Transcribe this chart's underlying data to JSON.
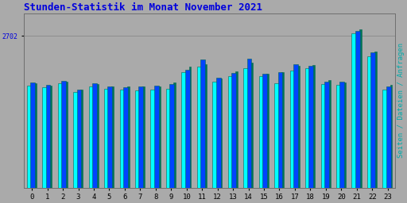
{
  "title": "Stunden-Statistik im Monat November 2021",
  "title_color": "#0000dd",
  "title_fontsize": 9,
  "ylabel_right": "Seiten / Dateien / Anfragen",
  "ylabel_right_color": "#00aaaa",
  "ylabel_right_fontsize": 6.5,
  "xlabel_labels": [
    "0",
    "1",
    "2",
    "3",
    "4",
    "5",
    "6",
    "7",
    "8",
    "9",
    "10",
    "11",
    "12",
    "13",
    "14",
    "15",
    "16",
    "17",
    "18",
    "19",
    "20",
    "21",
    "22",
    "23"
  ],
  "ytick_label": "2702",
  "ytick_label_color": "#0000dd",
  "background_color": "#aaaaaa",
  "plot_bg_color": "#aaaaaa",
  "bar_color_cyan": "#00ffff",
  "bar_color_blue": "#0044ff",
  "bar_color_green": "#007755",
  "bar_edge_color": "#006655",
  "ylim_max": 3100,
  "ytick_val": 2702,
  "seiten": [
    1820,
    1780,
    1860,
    1700,
    1800,
    1760,
    1740,
    1730,
    1740,
    1760,
    2060,
    2160,
    1880,
    1980,
    2120,
    1980,
    1860,
    2080,
    2130,
    1840,
    1830,
    2740,
    2340,
    1750
  ],
  "dateien": [
    1870,
    1830,
    1900,
    1750,
    1860,
    1800,
    1790,
    1800,
    1820,
    1840,
    2100,
    2280,
    1960,
    2040,
    2290,
    2020,
    2050,
    2200,
    2170,
    1890,
    1880,
    2790,
    2410,
    1800
  ],
  "anfragen": [
    1855,
    1820,
    1880,
    1740,
    1845,
    1795,
    1795,
    1805,
    1805,
    1875,
    2160,
    2190,
    1940,
    2065,
    2220,
    2020,
    2060,
    2170,
    2185,
    1920,
    1870,
    2810,
    2415,
    1835
  ]
}
